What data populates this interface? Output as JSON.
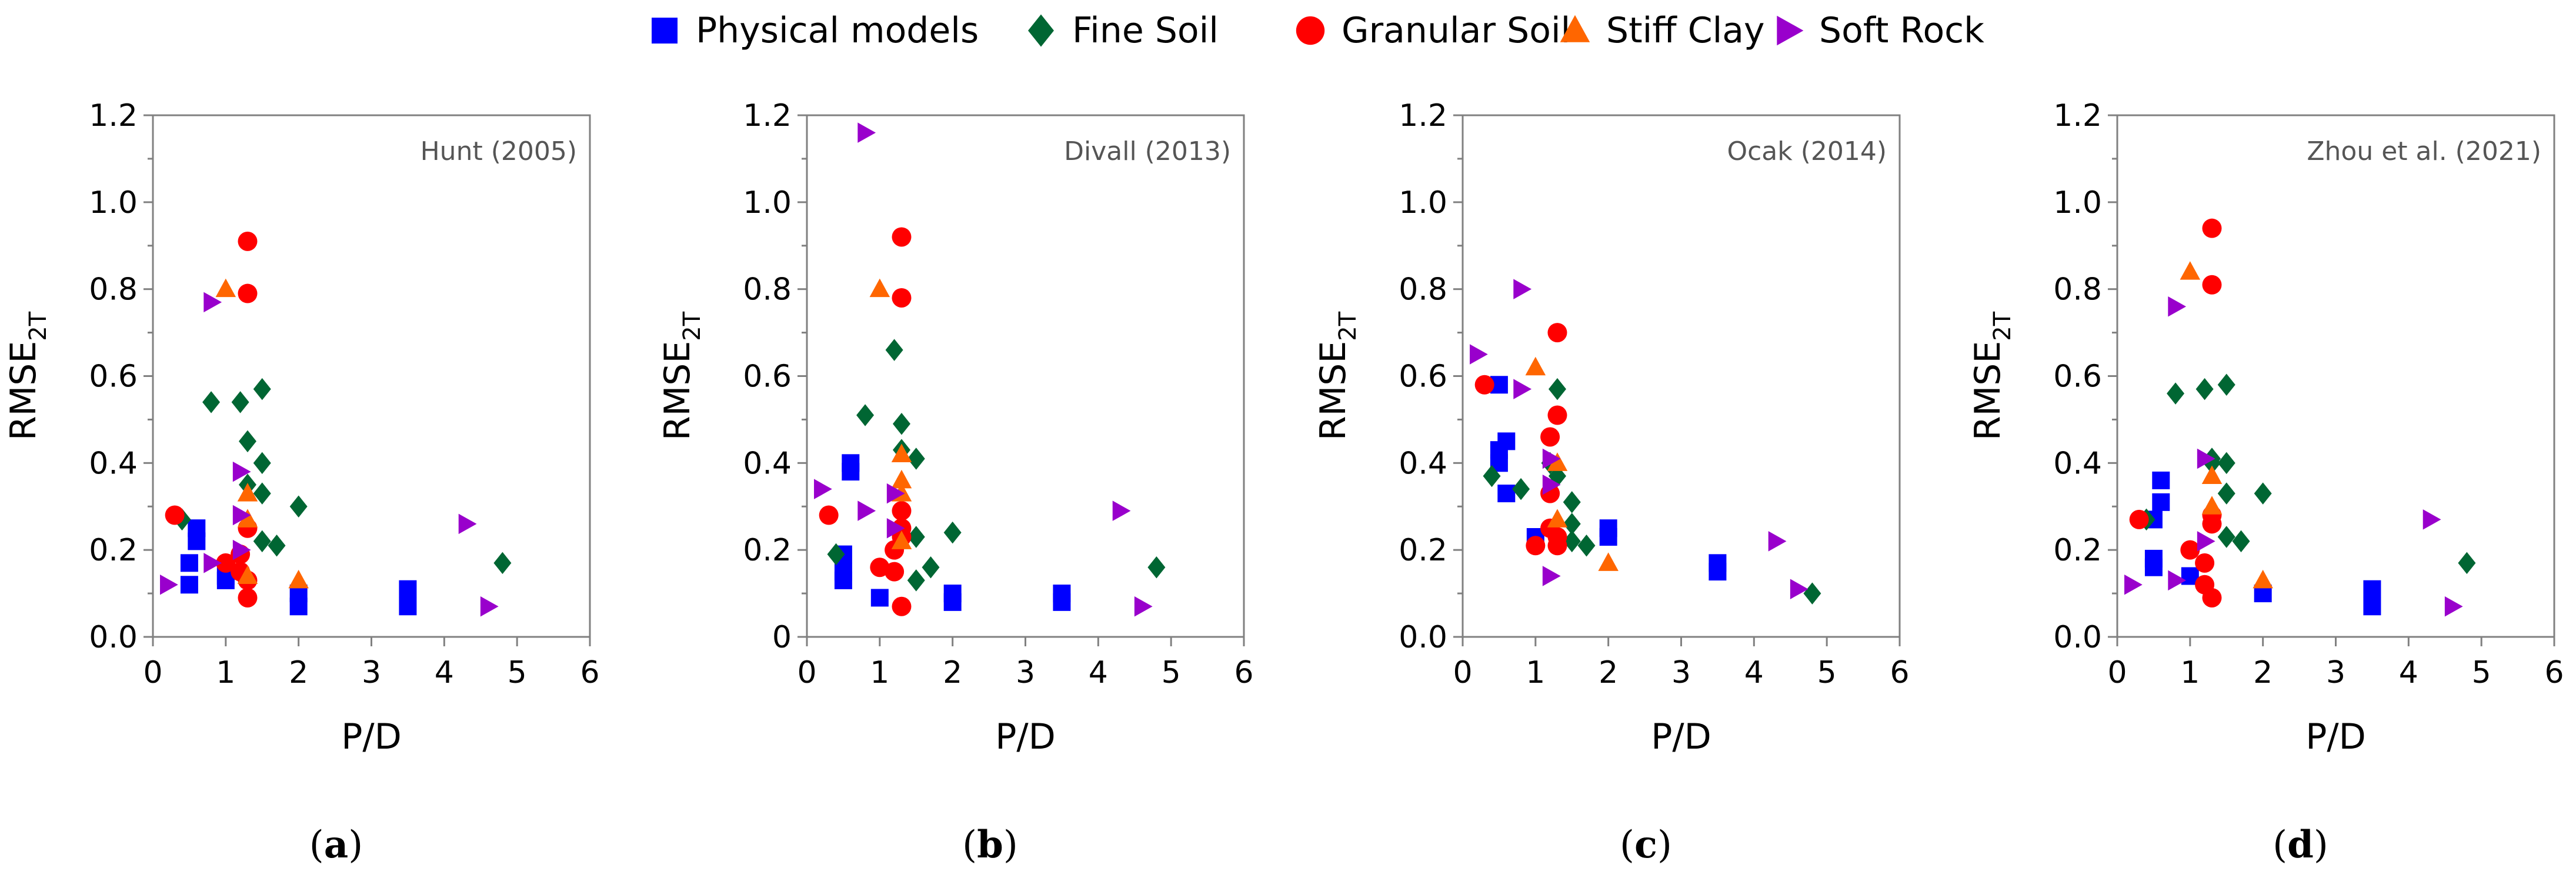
{
  "legend": [
    {
      "label": "Physical models",
      "marker": "square",
      "color": "#0000ff"
    },
    {
      "label": "Fine Soil",
      "marker": "diamond",
      "color": "#006633"
    },
    {
      "label": "Granular Soil",
      "marker": "circle",
      "color": "#ff0000"
    },
    {
      "label": "Stiff Clay",
      "marker": "triangle-up",
      "color": "#ff6600"
    },
    {
      "label": "Soft Rock",
      "marker": "triangle-right",
      "color": "#9900cc"
    }
  ],
  "chart_data": [
    {
      "type": "scatter",
      "title": "Hunt (2005)",
      "panel_label": "a",
      "xlabel": "P/D",
      "ylabel_main": "RMSE",
      "ylabel_sub": "2T",
      "xlim": [
        0,
        6
      ],
      "ylim": [
        0,
        1.2
      ],
      "xticks": [
        0,
        1,
        2,
        3,
        4,
        5,
        6
      ],
      "yticks": [
        0.0,
        0.2,
        0.4,
        0.6,
        0.8,
        1.0,
        1.2
      ],
      "ytick_labels": [
        "0.0",
        "0.2",
        "0.4",
        "0.6",
        "0.8",
        "1.0",
        "1.2"
      ],
      "series": [
        {
          "name": "Physical models",
          "points": [
            [
              0.5,
              0.17
            ],
            [
              0.5,
              0.12
            ],
            [
              0.6,
              0.25
            ],
            [
              0.6,
              0.22
            ],
            [
              1.0,
              0.13
            ],
            [
              1.0,
              0.14
            ],
            [
              2.0,
              0.1
            ],
            [
              2.0,
              0.07
            ],
            [
              3.5,
              0.11
            ],
            [
              3.5,
              0.07
            ]
          ]
        },
        {
          "name": "Fine Soil",
          "points": [
            [
              0.4,
              0.27
            ],
            [
              0.8,
              0.54
            ],
            [
              1.2,
              0.54
            ],
            [
              1.3,
              0.45
            ],
            [
              1.3,
              0.35
            ],
            [
              1.5,
              0.57
            ],
            [
              1.5,
              0.4
            ],
            [
              1.5,
              0.33
            ],
            [
              1.5,
              0.22
            ],
            [
              1.7,
              0.21
            ],
            [
              2.0,
              0.3
            ],
            [
              4.8,
              0.17
            ]
          ]
        },
        {
          "name": "Granular Soil",
          "points": [
            [
              0.3,
              0.28
            ],
            [
              1.0,
              0.17
            ],
            [
              1.2,
              0.19
            ],
            [
              1.2,
              0.15
            ],
            [
              1.3,
              0.91
            ],
            [
              1.3,
              0.79
            ],
            [
              1.3,
              0.25
            ],
            [
              1.3,
              0.13
            ],
            [
              1.3,
              0.09
            ]
          ]
        },
        {
          "name": "Stiff Clay",
          "points": [
            [
              1.0,
              0.8
            ],
            [
              1.3,
              0.33
            ],
            [
              1.3,
              0.27
            ],
            [
              1.3,
              0.14
            ],
            [
              2.0,
              0.13
            ]
          ]
        },
        {
          "name": "Soft Rock",
          "points": [
            [
              0.2,
              0.12
            ],
            [
              0.8,
              0.77
            ],
            [
              0.8,
              0.17
            ],
            [
              1.2,
              0.38
            ],
            [
              1.2,
              0.28
            ],
            [
              1.2,
              0.2
            ],
            [
              4.3,
              0.26
            ],
            [
              4.6,
              0.07
            ]
          ]
        }
      ]
    },
    {
      "type": "scatter",
      "title": "Divall (2013)",
      "panel_label": "b",
      "xlabel": "P/D",
      "ylabel_main": "RMSE",
      "ylabel_sub": "2T",
      "xlim": [
        0,
        6
      ],
      "ylim": [
        0,
        1.2
      ],
      "xticks": [
        0,
        1,
        2,
        3,
        4,
        5,
        6
      ],
      "yticks": [
        0.0,
        0.2,
        0.4,
        0.6,
        0.8,
        1.0,
        1.2
      ],
      "ytick_labels": [
        "0",
        "0.2",
        "0.4",
        "0.6",
        "0.8",
        "1.0",
        "1.2"
      ],
      "series": [
        {
          "name": "Physical models",
          "points": [
            [
              0.5,
              0.19
            ],
            [
              0.5,
              0.15
            ],
            [
              0.5,
              0.13
            ],
            [
              0.6,
              0.4
            ],
            [
              0.6,
              0.38
            ],
            [
              1.0,
              0.09
            ],
            [
              2.0,
              0.1
            ],
            [
              2.0,
              0.08
            ],
            [
              3.5,
              0.1
            ],
            [
              3.5,
              0.08
            ]
          ]
        },
        {
          "name": "Fine Soil",
          "points": [
            [
              0.4,
              0.19
            ],
            [
              0.8,
              0.51
            ],
            [
              1.2,
              0.66
            ],
            [
              1.3,
              0.49
            ],
            [
              1.3,
              0.43
            ],
            [
              1.5,
              0.41
            ],
            [
              1.5,
              0.23
            ],
            [
              1.5,
              0.13
            ],
            [
              1.7,
              0.16
            ],
            [
              2.0,
              0.24
            ],
            [
              4.8,
              0.16
            ]
          ]
        },
        {
          "name": "Granular Soil",
          "points": [
            [
              0.3,
              0.28
            ],
            [
              1.0,
              0.16
            ],
            [
              1.2,
              0.2
            ],
            [
              1.2,
              0.15
            ],
            [
              1.3,
              0.92
            ],
            [
              1.3,
              0.78
            ],
            [
              1.3,
              0.29
            ],
            [
              1.3,
              0.25
            ],
            [
              1.3,
              0.23
            ],
            [
              1.3,
              0.07
            ]
          ]
        },
        {
          "name": "Stiff Clay",
          "points": [
            [
              1.0,
              0.8
            ],
            [
              1.3,
              0.42
            ],
            [
              1.3,
              0.36
            ],
            [
              1.3,
              0.33
            ],
            [
              1.3,
              0.22
            ]
          ]
        },
        {
          "name": "Soft Rock",
          "points": [
            [
              0.2,
              0.34
            ],
            [
              0.8,
              1.16
            ],
            [
              0.8,
              0.29
            ],
            [
              1.2,
              0.33
            ],
            [
              1.2,
              0.25
            ],
            [
              4.3,
              0.29
            ],
            [
              4.6,
              0.07
            ]
          ]
        }
      ]
    },
    {
      "type": "scatter",
      "title": "Ocak (2014)",
      "panel_label": "c",
      "xlabel": "P/D",
      "ylabel_main": "RMSE",
      "ylabel_sub": "2T",
      "xlim": [
        0,
        6
      ],
      "ylim": [
        0,
        1.2
      ],
      "xticks": [
        0,
        1,
        2,
        3,
        4,
        5,
        6
      ],
      "yticks": [
        0.0,
        0.2,
        0.4,
        0.6,
        0.8,
        1.0,
        1.2
      ],
      "ytick_labels": [
        "0.0",
        "0.2",
        "0.4",
        "0.6",
        "0.8",
        "1.0",
        "1.2"
      ],
      "series": [
        {
          "name": "Physical models",
          "points": [
            [
              0.5,
              0.58
            ],
            [
              0.5,
              0.43
            ],
            [
              0.5,
              0.4
            ],
            [
              0.6,
              0.45
            ],
            [
              0.6,
              0.33
            ],
            [
              1.0,
              0.23
            ],
            [
              2.0,
              0.25
            ],
            [
              2.0,
              0.23
            ],
            [
              3.5,
              0.17
            ],
            [
              3.5,
              0.15
            ]
          ]
        },
        {
          "name": "Fine Soil",
          "points": [
            [
              0.4,
              0.37
            ],
            [
              0.8,
              0.34
            ],
            [
              1.2,
              0.4
            ],
            [
              1.3,
              0.57
            ],
            [
              1.3,
              0.37
            ],
            [
              1.5,
              0.31
            ],
            [
              1.5,
              0.26
            ],
            [
              1.5,
              0.22
            ],
            [
              1.7,
              0.21
            ],
            [
              4.8,
              0.1
            ]
          ]
        },
        {
          "name": "Granular Soil",
          "points": [
            [
              0.3,
              0.58
            ],
            [
              1.0,
              0.21
            ],
            [
              1.2,
              0.46
            ],
            [
              1.2,
              0.33
            ],
            [
              1.2,
              0.25
            ],
            [
              1.3,
              0.7
            ],
            [
              1.3,
              0.51
            ],
            [
              1.3,
              0.23
            ],
            [
              1.3,
              0.21
            ]
          ]
        },
        {
          "name": "Stiff Clay",
          "points": [
            [
              1.0,
              0.62
            ],
            [
              1.3,
              0.4
            ],
            [
              1.3,
              0.27
            ],
            [
              2.0,
              0.17
            ]
          ]
        },
        {
          "name": "Soft Rock",
          "points": [
            [
              0.2,
              0.65
            ],
            [
              0.8,
              0.8
            ],
            [
              0.8,
              0.57
            ],
            [
              1.2,
              0.41
            ],
            [
              1.2,
              0.35
            ],
            [
              1.2,
              0.14
            ],
            [
              4.3,
              0.22
            ],
            [
              4.6,
              0.11
            ]
          ]
        }
      ]
    },
    {
      "type": "scatter",
      "title": "Zhou et al. (2021)",
      "panel_label": "d",
      "xlabel": "P/D",
      "ylabel_main": "RMSE",
      "ylabel_sub": "2T",
      "xlim": [
        0,
        6
      ],
      "ylim": [
        0,
        1.2
      ],
      "xticks": [
        0,
        1,
        2,
        3,
        4,
        5,
        6
      ],
      "yticks": [
        0.0,
        0.2,
        0.4,
        0.6,
        0.8,
        1.0,
        1.2
      ],
      "ytick_labels": [
        "0.0",
        "0.2",
        "0.4",
        "0.6",
        "0.8",
        "1.0",
        "1.2"
      ],
      "series": [
        {
          "name": "Physical models",
          "points": [
            [
              0.5,
              0.27
            ],
            [
              0.5,
              0.18
            ],
            [
              0.5,
              0.16
            ],
            [
              0.6,
              0.36
            ],
            [
              0.6,
              0.31
            ],
            [
              1.0,
              0.14
            ],
            [
              2.0,
              0.1
            ],
            [
              3.5,
              0.11
            ],
            [
              3.5,
              0.07
            ]
          ]
        },
        {
          "name": "Fine Soil",
          "points": [
            [
              0.4,
              0.27
            ],
            [
              0.8,
              0.56
            ],
            [
              1.2,
              0.57
            ],
            [
              1.3,
              0.41
            ],
            [
              1.3,
              0.4
            ],
            [
              1.5,
              0.58
            ],
            [
              1.5,
              0.4
            ],
            [
              1.5,
              0.33
            ],
            [
              1.5,
              0.23
            ],
            [
              1.7,
              0.22
            ],
            [
              2.0,
              0.33
            ],
            [
              4.8,
              0.17
            ]
          ]
        },
        {
          "name": "Granular Soil",
          "points": [
            [
              0.3,
              0.27
            ],
            [
              1.0,
              0.2
            ],
            [
              1.2,
              0.17
            ],
            [
              1.2,
              0.12
            ],
            [
              1.3,
              0.94
            ],
            [
              1.3,
              0.81
            ],
            [
              1.3,
              0.28
            ],
            [
              1.3,
              0.26
            ],
            [
              1.3,
              0.09
            ]
          ]
        },
        {
          "name": "Stiff Clay",
          "points": [
            [
              1.0,
              0.84
            ],
            [
              1.3,
              0.37
            ],
            [
              1.3,
              0.3
            ],
            [
              2.0,
              0.13
            ]
          ]
        },
        {
          "name": "Soft Rock",
          "points": [
            [
              0.2,
              0.12
            ],
            [
              0.8,
              0.76
            ],
            [
              0.8,
              0.13
            ],
            [
              1.2,
              0.41
            ],
            [
              1.2,
              0.22
            ],
            [
              4.3,
              0.27
            ],
            [
              4.6,
              0.07
            ]
          ]
        }
      ]
    }
  ]
}
